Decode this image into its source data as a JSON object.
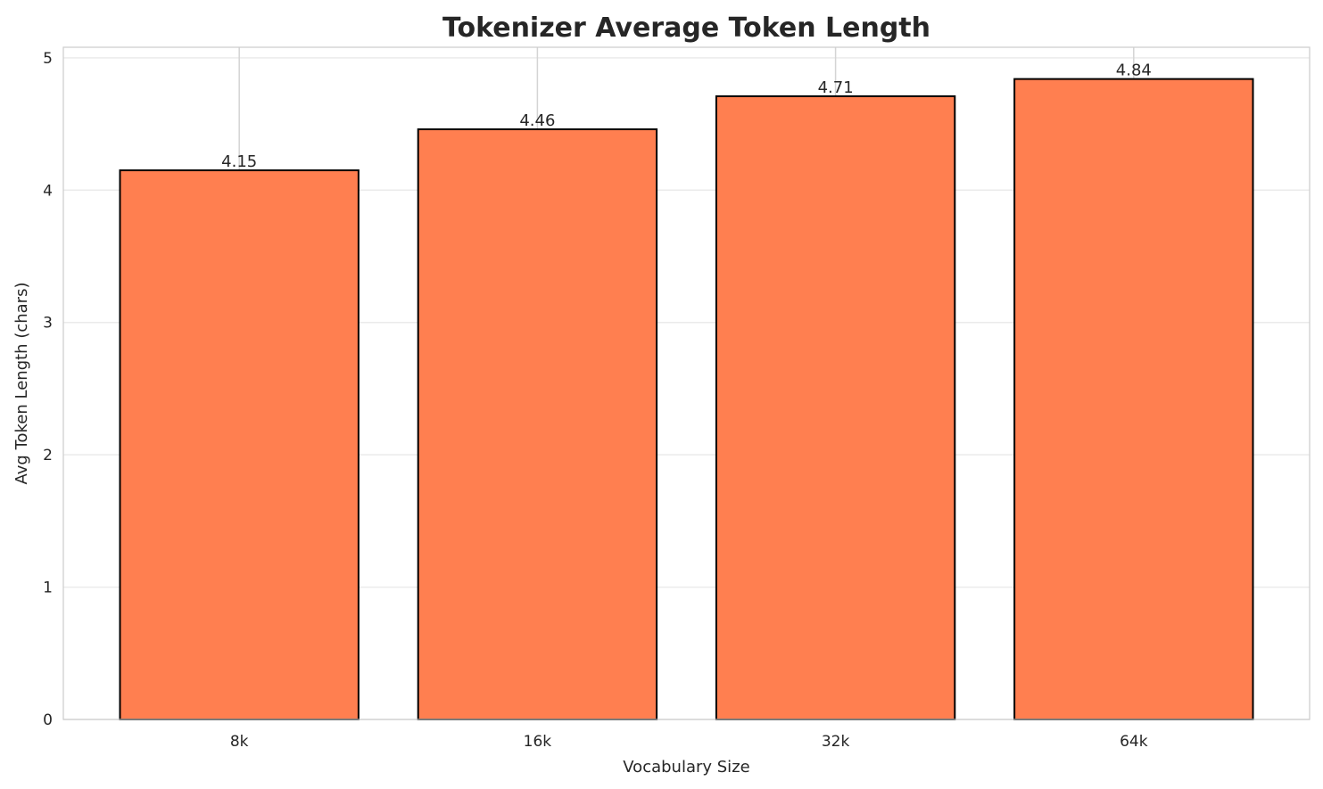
{
  "chart_data": {
    "type": "bar",
    "title": "Tokenizer Average Token Length",
    "xlabel": "Vocabulary Size",
    "ylabel": "Avg Token Length (chars)",
    "categories": [
      "8k",
      "16k",
      "32k",
      "64k"
    ],
    "values": [
      4.15,
      4.46,
      4.71,
      4.84
    ],
    "data_labels": [
      "4.15",
      "4.46",
      "4.71",
      "4.84"
    ],
    "ylim": [
      0,
      5.08
    ],
    "yticks": [
      0,
      1,
      2,
      3,
      4,
      5
    ],
    "ytick_labels": [
      "0",
      "1",
      "2",
      "3",
      "4",
      "5"
    ],
    "grid": true,
    "colors": {
      "bar": "#FF7F50",
      "edge": "#000000"
    }
  }
}
